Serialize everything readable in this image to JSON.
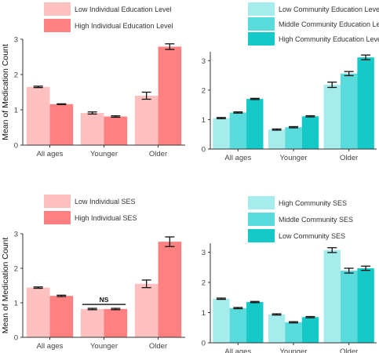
{
  "chart_data": [
    {
      "type": "bar",
      "ylabel": "Mean of Medication Count",
      "categories": [
        "All ages",
        "Younger",
        "Older"
      ],
      "ylim": [
        0,
        3
      ],
      "yticks": [
        0,
        1,
        2,
        3
      ],
      "legend_position": "top",
      "series": [
        {
          "name": "Low Individual Education Level",
          "color": "#ffc0c0",
          "values": [
            1.65,
            0.91,
            1.4
          ],
          "errors": [
            0.02,
            0.03,
            0.1
          ]
        },
        {
          "name": "High Individual Education Level",
          "color": "#ff8080",
          "values": [
            1.16,
            0.81,
            2.79
          ],
          "errors": [
            0.01,
            0.02,
            0.08
          ]
        }
      ],
      "annotations": []
    },
    {
      "type": "bar",
      "ylabel": "",
      "categories": [
        "All ages",
        "Younger",
        "Older"
      ],
      "ylim": [
        0,
        3.3
      ],
      "yticks": [
        0,
        1,
        2,
        3
      ],
      "legend_position": "top",
      "series": [
        {
          "name": "Low Community Education Level",
          "color": "#a6ecec",
          "values": [
            1.05,
            0.66,
            2.18
          ],
          "errors": [
            0.02,
            0.02,
            0.09
          ]
        },
        {
          "name": "Middle Community Education Level",
          "color": "#59dbdb",
          "values": [
            1.24,
            0.74,
            2.56
          ],
          "errors": [
            0.02,
            0.02,
            0.07
          ]
        },
        {
          "name": "High Community Education Level",
          "color": "#16c9c9",
          "values": [
            1.7,
            1.11,
            3.11
          ],
          "errors": [
            0.02,
            0.02,
            0.08
          ]
        }
      ],
      "annotations": []
    },
    {
      "type": "bar",
      "ylabel": "Mean of Medication Count",
      "categories": [
        "All ages",
        "Younger",
        "Older"
      ],
      "ylim": [
        0,
        3
      ],
      "yticks": [
        0,
        1,
        2,
        3
      ],
      "legend_position": "top",
      "series": [
        {
          "name": "Low Individual SES",
          "color": "#ffc0c0",
          "values": [
            1.44,
            0.82,
            1.55
          ],
          "errors": [
            0.02,
            0.02,
            0.11
          ]
        },
        {
          "name": "High Individual SES",
          "color": "#ff8080",
          "values": [
            1.2,
            0.82,
            2.77
          ],
          "errors": [
            0.02,
            0.02,
            0.14
          ]
        }
      ],
      "annotations": [
        {
          "text": "NS",
          "category": "Younger"
        }
      ]
    },
    {
      "type": "bar",
      "ylabel": "",
      "categories": [
        "All ages",
        "Younger",
        "Older"
      ],
      "ylim": [
        0,
        3.3
      ],
      "yticks": [
        0,
        1,
        2,
        3
      ],
      "legend_position": "top",
      "series": [
        {
          "name": "High Community SES",
          "color": "#a6ecec",
          "values": [
            1.46,
            0.94,
            3.07
          ],
          "errors": [
            0.02,
            0.02,
            0.08
          ]
        },
        {
          "name": "Middle Community SES",
          "color": "#59dbdb",
          "values": [
            1.15,
            0.68,
            2.39
          ],
          "errors": [
            0.02,
            0.02,
            0.08
          ]
        },
        {
          "name": "Low Community SES",
          "color": "#16c9c9",
          "values": [
            1.35,
            0.85,
            2.47
          ],
          "errors": [
            0.02,
            0.02,
            0.07
          ]
        }
      ],
      "annotations": []
    }
  ]
}
